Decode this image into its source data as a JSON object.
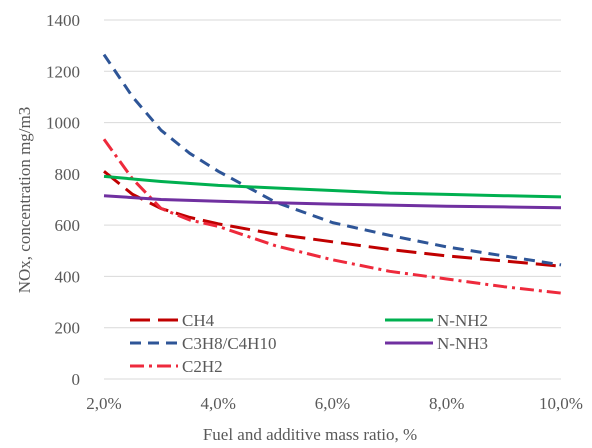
{
  "chart_data": {
    "type": "line",
    "title": "",
    "xlabel": "Fuel and additive mass ratio, %",
    "ylabel": "NOx, concentration mg/m3",
    "xlim": [
      2,
      10
    ],
    "ylim": [
      0,
      1400
    ],
    "x_ticks": [
      2,
      4,
      6,
      8,
      10
    ],
    "x_tick_labels": [
      "2,0%",
      "4,0%",
      "6,0%",
      "8,0%",
      "10,0%"
    ],
    "y_ticks": [
      0,
      200,
      400,
      600,
      800,
      1000,
      1200,
      1400
    ],
    "y_tick_labels": [
      "0",
      "200",
      "400",
      "600",
      "800",
      "1000",
      "1200",
      "1400"
    ],
    "grid": {
      "horizontal": true,
      "vertical": false
    },
    "legend_position": "bottom-inside",
    "series": [
      {
        "name": "CH4",
        "color": "#c00000",
        "style": "long-dash",
        "x": [
          2,
          2.5,
          3,
          3.5,
          4,
          5,
          6,
          7,
          8,
          9,
          10
        ],
        "y": [
          810,
          720,
          665,
          630,
          605,
          565,
          535,
          505,
          480,
          460,
          440
        ]
      },
      {
        "name": "C3H8/C4H10",
        "color": "#2e5597",
        "style": "dash",
        "x": [
          2,
          2.5,
          3,
          3.5,
          4,
          5,
          6,
          7,
          8,
          9,
          10
        ],
        "y": [
          1265,
          1100,
          970,
          880,
          810,
          690,
          610,
          560,
          515,
          480,
          445
        ]
      },
      {
        "name": "C2H2",
        "color": "#ee2a3c",
        "style": "dash-dot",
        "x": [
          2,
          2.5,
          3,
          3.5,
          4,
          5,
          6,
          7,
          8,
          9,
          10
        ],
        "y": [
          935,
          780,
          665,
          620,
          595,
          520,
          465,
          420,
          390,
          360,
          335
        ]
      },
      {
        "name": "N-NH2",
        "color": "#00b050",
        "style": "solid",
        "x": [
          2,
          3,
          4,
          5,
          6,
          7,
          8,
          9,
          10
        ],
        "y": [
          790,
          770,
          755,
          745,
          735,
          725,
          720,
          715,
          710
        ]
      },
      {
        "name": "N-NH3",
        "color": "#7030a0",
        "style": "solid",
        "x": [
          2,
          3,
          4,
          5,
          6,
          7,
          8,
          9,
          10
        ],
        "y": [
          715,
          700,
          693,
          687,
          682,
          678,
          674,
          671,
          668
        ]
      }
    ]
  }
}
